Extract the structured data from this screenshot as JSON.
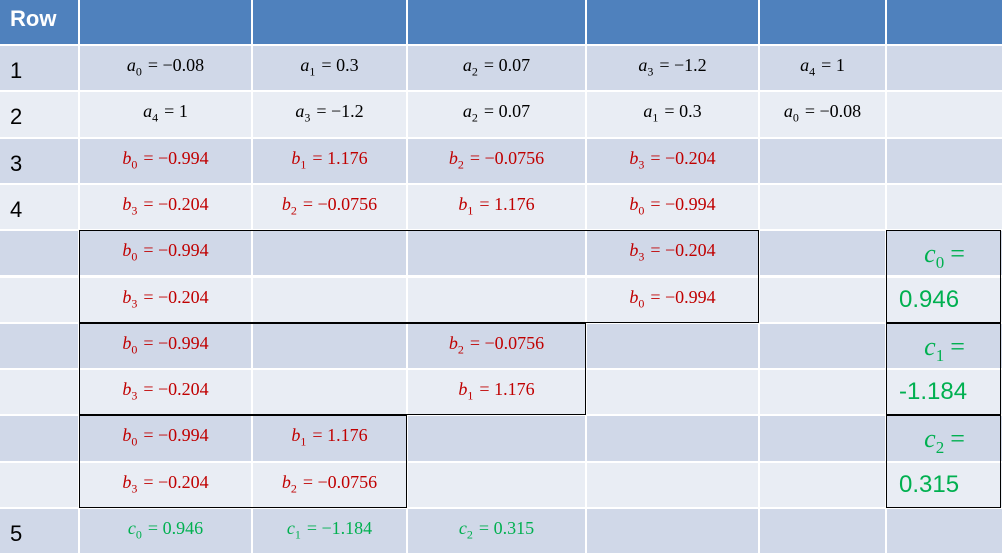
{
  "header": [
    "Row",
    null,
    null,
    null,
    null,
    null,
    null
  ],
  "rows": [
    [
      "1",
      {
        "var": "a",
        "sub": "0",
        "rest": "= −0.08",
        "color": "#000000"
      },
      {
        "var": "a",
        "sub": "1",
        "rest": "= 0.3",
        "color": "#000000"
      },
      {
        "var": "a",
        "sub": "2",
        "rest": "= 0.07",
        "color": "#000000"
      },
      {
        "var": "a",
        "sub": "3",
        "rest": "= −1.2",
        "color": "#000000"
      },
      {
        "var": "a",
        "sub": "4",
        "rest": "= 1",
        "color": "#000000"
      },
      null
    ],
    [
      "2",
      {
        "var": "a",
        "sub": "4",
        "rest": "= 1",
        "color": "#000000"
      },
      {
        "var": "a",
        "sub": "3",
        "rest": "= −1.2",
        "color": "#000000"
      },
      {
        "var": "a",
        "sub": "2",
        "rest": "= 0.07",
        "color": "#000000"
      },
      {
        "var": "a",
        "sub": "1",
        "rest": "= 0.3",
        "color": "#000000"
      },
      {
        "var": "a",
        "sub": "0",
        "rest": "= −0.08",
        "color": "#000000"
      },
      null
    ],
    [
      "3",
      {
        "var": "b",
        "sub": "0",
        "rest": "= −0.994",
        "color": "#c00000"
      },
      {
        "var": "b",
        "sub": "1",
        "rest": "= 1.176",
        "color": "#c00000"
      },
      {
        "var": "b",
        "sub": "2",
        "rest": "= −0.0756",
        "color": "#c00000"
      },
      {
        "var": "b",
        "sub": "3",
        "rest": "= −0.204",
        "color": "#c00000"
      },
      null,
      null
    ],
    [
      "4",
      {
        "var": "b",
        "sub": "3",
        "rest": "= −0.204",
        "color": "#c00000"
      },
      {
        "var": "b",
        "sub": "2",
        "rest": "= −0.0756",
        "color": "#c00000"
      },
      {
        "var": "b",
        "sub": "1",
        "rest": "= 1.176",
        "color": "#c00000"
      },
      {
        "var": "b",
        "sub": "0",
        "rest": "= −0.994",
        "color": "#c00000"
      },
      null,
      null
    ],
    [
      null,
      {
        "var": "b",
        "sub": "0",
        "rest": "= −0.994",
        "color": "#c00000"
      },
      null,
      null,
      {
        "var": "b",
        "sub": "3",
        "rest": "= −0.204",
        "color": "#c00000"
      },
      null,
      {
        "var": "c",
        "sub": "0",
        "rest": "=",
        "color": "#00b050"
      }
    ],
    [
      null,
      {
        "var": "b",
        "sub": "3",
        "rest": "= −0.204",
        "color": "#c00000"
      },
      null,
      null,
      {
        "var": "b",
        "sub": "0",
        "rest": "= −0.994",
        "color": "#c00000"
      },
      null,
      {
        "text": "0.946",
        "color": "#00b050"
      }
    ],
    [
      null,
      {
        "var": "b",
        "sub": "0",
        "rest": "= −0.994",
        "color": "#c00000"
      },
      null,
      {
        "var": "b",
        "sub": "2",
        "rest": "= −0.0756",
        "color": "#c00000"
      },
      null,
      null,
      {
        "var": "c",
        "sub": "1",
        "rest": "=",
        "color": "#00b050"
      }
    ],
    [
      null,
      {
        "var": "b",
        "sub": "3",
        "rest": "= −0.204",
        "color": "#c00000"
      },
      null,
      {
        "var": "b",
        "sub": "1",
        "rest": "= 1.176",
        "color": "#c00000"
      },
      null,
      null,
      {
        "text": "-1.184",
        "color": "#00b050"
      }
    ],
    [
      null,
      {
        "var": "b",
        "sub": "0",
        "rest": "= −0.994",
        "color": "#c00000"
      },
      {
        "var": "b",
        "sub": "1",
        "rest": "= 1.176",
        "color": "#c00000"
      },
      null,
      null,
      null,
      {
        "var": "c",
        "sub": "2",
        "rest": "=",
        "color": "#00b050"
      }
    ],
    [
      null,
      {
        "var": "b",
        "sub": "3",
        "rest": "= −0.204",
        "color": "#c00000"
      },
      {
        "var": "b",
        "sub": "2",
        "rest": "= −0.0756",
        "color": "#c00000"
      },
      null,
      null,
      null,
      {
        "text": "0.315",
        "color": "#00b050"
      }
    ],
    [
      "5",
      {
        "var": "c",
        "sub": "0",
        "rest": "= 0.946",
        "color": "#00b050"
      },
      {
        "var": "c",
        "sub": "1",
        "rest": "= −1.184",
        "color": "#00b050"
      },
      {
        "var": "c",
        "sub": "2",
        "rest": "= 0.315",
        "color": "#00b050"
      },
      null,
      null,
      null
    ]
  ]
}
